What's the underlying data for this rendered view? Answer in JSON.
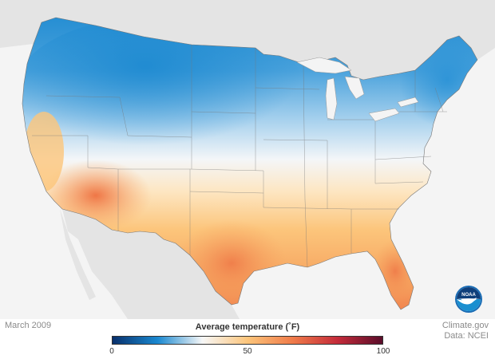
{
  "map": {
    "region": "contiguous United States",
    "variable": "Average temperature",
    "colors": {
      "cold": "#1a88d0",
      "cool": "#6fb3e3",
      "neutral": "#f7f7f7",
      "warm": "#fcc57b",
      "hot": "#f07c4a",
      "background": "#f4f4f4",
      "land_outside": "#e4e4e4",
      "borders": "#666666"
    }
  },
  "labels": {
    "date": "March 2009",
    "legend_title": "Average temperature (˚F)",
    "credit_line1": "Climate.gov",
    "credit_line2": "Data: NCEI"
  },
  "legend": {
    "min": 0,
    "max": 100,
    "ticks": [
      {
        "value": 0,
        "label": "0"
      },
      {
        "value": 50,
        "label": "50"
      },
      {
        "value": 100,
        "label": "100"
      }
    ],
    "gradient": [
      "#08306b",
      "#1a88d0",
      "#f7f7f7",
      "#fcc57b",
      "#f07c4a",
      "#c42b3a",
      "#5a0d2a"
    ]
  },
  "logo": {
    "text": "NOAA",
    "icon": "noaa-logo-icon"
  }
}
